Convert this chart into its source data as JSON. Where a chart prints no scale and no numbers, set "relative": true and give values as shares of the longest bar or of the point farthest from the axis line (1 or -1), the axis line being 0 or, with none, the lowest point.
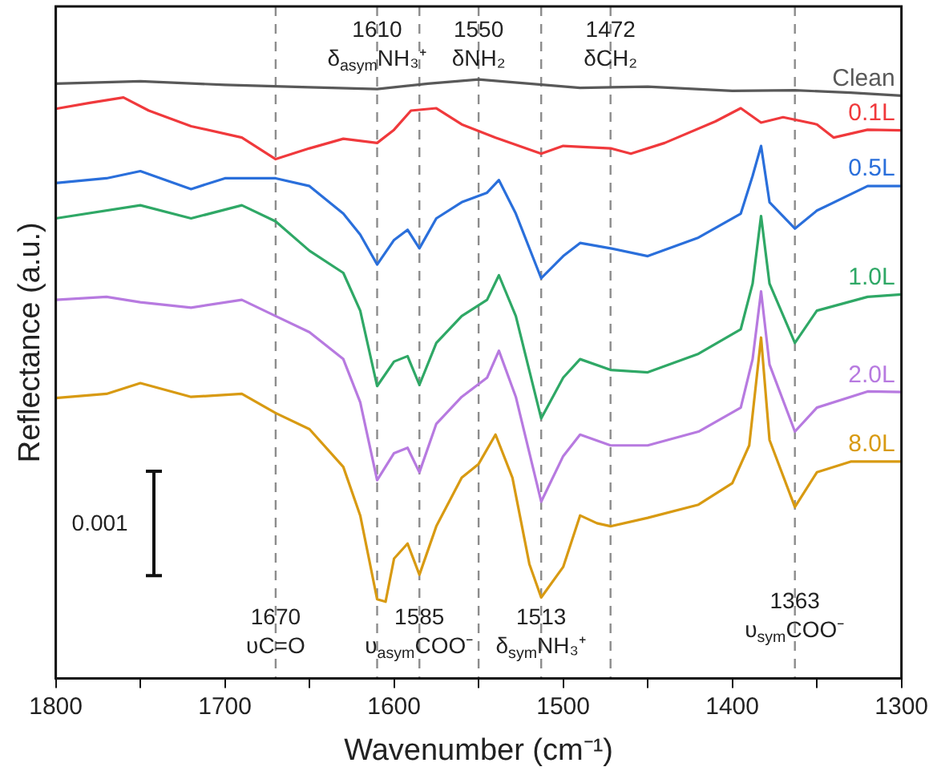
{
  "chart_data": {
    "type": "line",
    "relative": true,
    "xlabel": "Wavenumber (cm⁻¹)",
    "ylabel": "Reflectance (a.u.)",
    "legend": false,
    "grid": false,
    "tick_labels": "x",
    "marker": "none",
    "line_style": "solid",
    "xlim": [
      1800,
      1300
    ],
    "xticks": [
      1800,
      {
        "value": 1750,
        "label": null
      },
      1700,
      {
        "value": 1650,
        "label": null
      },
      1600,
      {
        "value": 1550,
        "label": null
      },
      1500,
      {
        "value": 1450,
        "label": null
      },
      1400,
      {
        "value": 1350,
        "label": null
      },
      1300
    ],
    "series": [
      {
        "name": "Clean",
        "color": "#595959",
        "x": [
          1800,
          1750,
          1700,
          1650,
          1610,
          1580,
          1550,
          1520,
          1490,
          1450,
          1400,
          1363,
          1330,
          1300
        ],
        "values": [
          0.993,
          0.997,
          0.991,
          0.987,
          0.984,
          0.993,
          1.0,
          0.993,
          0.986,
          0.988,
          0.981,
          0.982,
          0.978,
          0.973
        ]
      },
      {
        "name": "0.1L",
        "color": "#f0393c",
        "x": [
          1800,
          1780,
          1760,
          1745,
          1720,
          1690,
          1670,
          1650,
          1630,
          1610,
          1600,
          1590,
          1575,
          1560,
          1540,
          1513,
          1500,
          1472,
          1460,
          1440,
          1410,
          1395,
          1383,
          1370,
          1350,
          1340,
          1320,
          1300
        ],
        "values": [
          0.951,
          0.961,
          0.97,
          0.948,
          0.922,
          0.903,
          0.867,
          0.885,
          0.901,
          0.894,
          0.916,
          0.948,
          0.952,
          0.925,
          0.903,
          0.876,
          0.889,
          0.885,
          0.876,
          0.894,
          0.93,
          0.952,
          0.928,
          0.937,
          0.925,
          0.903,
          0.916,
          0.915
        ]
      },
      {
        "name": "0.5L",
        "color": "#2a6fdb",
        "x": [
          1800,
          1770,
          1750,
          1720,
          1700,
          1670,
          1650,
          1630,
          1620,
          1610,
          1600,
          1592,
          1585,
          1575,
          1560,
          1545,
          1538,
          1528,
          1513,
          1500,
          1490,
          1472,
          1450,
          1420,
          1395,
          1388,
          1383,
          1378,
          1363,
          1350,
          1320,
          1300
        ],
        "values": [
          0.827,
          0.835,
          0.847,
          0.817,
          0.835,
          0.835,
          0.822,
          0.776,
          0.741,
          0.691,
          0.732,
          0.749,
          0.718,
          0.768,
          0.795,
          0.811,
          0.832,
          0.776,
          0.668,
          0.705,
          0.727,
          0.718,
          0.705,
          0.736,
          0.776,
          0.839,
          0.889,
          0.795,
          0.751,
          0.781,
          0.822,
          0.822
        ]
      },
      {
        "name": "1.0L",
        "color": "#2fa866",
        "x": [
          1800,
          1750,
          1720,
          1690,
          1670,
          1650,
          1630,
          1620,
          1610,
          1600,
          1592,
          1585,
          1575,
          1560,
          1545,
          1538,
          1528,
          1513,
          1500,
          1490,
          1472,
          1450,
          1420,
          1395,
          1388,
          1383,
          1378,
          1363,
          1350,
          1320,
          1300
        ],
        "values": [
          0.768,
          0.79,
          0.768,
          0.79,
          0.763,
          0.714,
          0.677,
          0.614,
          0.488,
          0.529,
          0.538,
          0.49,
          0.56,
          0.605,
          0.632,
          0.673,
          0.605,
          0.434,
          0.502,
          0.533,
          0.515,
          0.511,
          0.542,
          0.583,
          0.659,
          0.772,
          0.659,
          0.56,
          0.614,
          0.637,
          0.641
        ]
      },
      {
        "name": "2.0L",
        "color": "#b77ae0",
        "x": [
          1800,
          1770,
          1750,
          1720,
          1690,
          1670,
          1650,
          1630,
          1620,
          1610,
          1600,
          1592,
          1585,
          1575,
          1560,
          1545,
          1538,
          1528,
          1513,
          1500,
          1490,
          1472,
          1450,
          1420,
          1395,
          1388,
          1383,
          1378,
          1363,
          1350,
          1320,
          1300
        ],
        "values": [
          0.632,
          0.637,
          0.628,
          0.619,
          0.632,
          0.605,
          0.578,
          0.533,
          0.461,
          0.331,
          0.376,
          0.385,
          0.344,
          0.425,
          0.47,
          0.502,
          0.547,
          0.47,
          0.295,
          0.371,
          0.407,
          0.389,
          0.389,
          0.412,
          0.452,
          0.533,
          0.646,
          0.524,
          0.412,
          0.452,
          0.479,
          0.478
        ]
      },
      {
        "name": "8.0L",
        "color": "#d89a12",
        "x": [
          1800,
          1770,
          1750,
          1720,
          1690,
          1670,
          1650,
          1630,
          1620,
          1610,
          1605,
          1600,
          1592,
          1585,
          1575,
          1560,
          1550,
          1540,
          1530,
          1520,
          1513,
          1500,
          1490,
          1480,
          1472,
          1450,
          1420,
          1400,
          1390,
          1383,
          1378,
          1363,
          1350,
          1330,
          1300
        ],
        "values": [
          0.468,
          0.475,
          0.493,
          0.47,
          0.475,
          0.443,
          0.416,
          0.353,
          0.272,
          0.132,
          0.128,
          0.2,
          0.225,
          0.173,
          0.254,
          0.335,
          0.358,
          0.407,
          0.335,
          0.191,
          0.135,
          0.186,
          0.272,
          0.259,
          0.254,
          0.268,
          0.29,
          0.326,
          0.389,
          0.569,
          0.398,
          0.286,
          0.344,
          0.362,
          0.362
        ]
      }
    ],
    "ref_lines": [
      {
        "axis": "x",
        "value": 1670,
        "color": "#8c8c8c",
        "line_style": "dashed"
      },
      {
        "axis": "x",
        "value": 1610,
        "color": "#8c8c8c",
        "line_style": "dashed"
      },
      {
        "axis": "x",
        "value": 1585,
        "color": "#8c8c8c",
        "line_style": "dashed"
      },
      {
        "axis": "x",
        "value": 1550,
        "color": "#8c8c8c",
        "line_style": "dashed"
      },
      {
        "axis": "x",
        "value": 1513,
        "color": "#8c8c8c",
        "line_style": "dashed"
      },
      {
        "axis": "x",
        "value": 1472,
        "color": "#8c8c8c",
        "line_style": "dashed"
      },
      {
        "axis": "x",
        "value": 1363,
        "color": "#8c8c8c",
        "line_style": "dashed"
      }
    ],
    "annotations": [
      {
        "text": "1610\nδ$_{asym}$NH₃⁺",
        "x": 1610,
        "y": 1.1
      },
      {
        "text": "1550\nδNH₂",
        "x": 1550,
        "y": 1.1
      },
      {
        "text": "1472\nδCH₂",
        "x": 1472,
        "y": 1.1
      },
      {
        "text": "1670\nυC=O",
        "x": 1670,
        "y": 0.119
      },
      {
        "text": "1585\nυ$_{asym}$COO⁻",
        "x": 1585,
        "y": 0.119
      },
      {
        "text": "1513\nδ$_{sym}$NH₃⁺",
        "x": 1513,
        "y": 0.119
      },
      {
        "text": "1363\nυ$_{sym}$COO⁻",
        "x": 1363,
        "y": 0.146
      },
      "0.001"
    ]
  }
}
